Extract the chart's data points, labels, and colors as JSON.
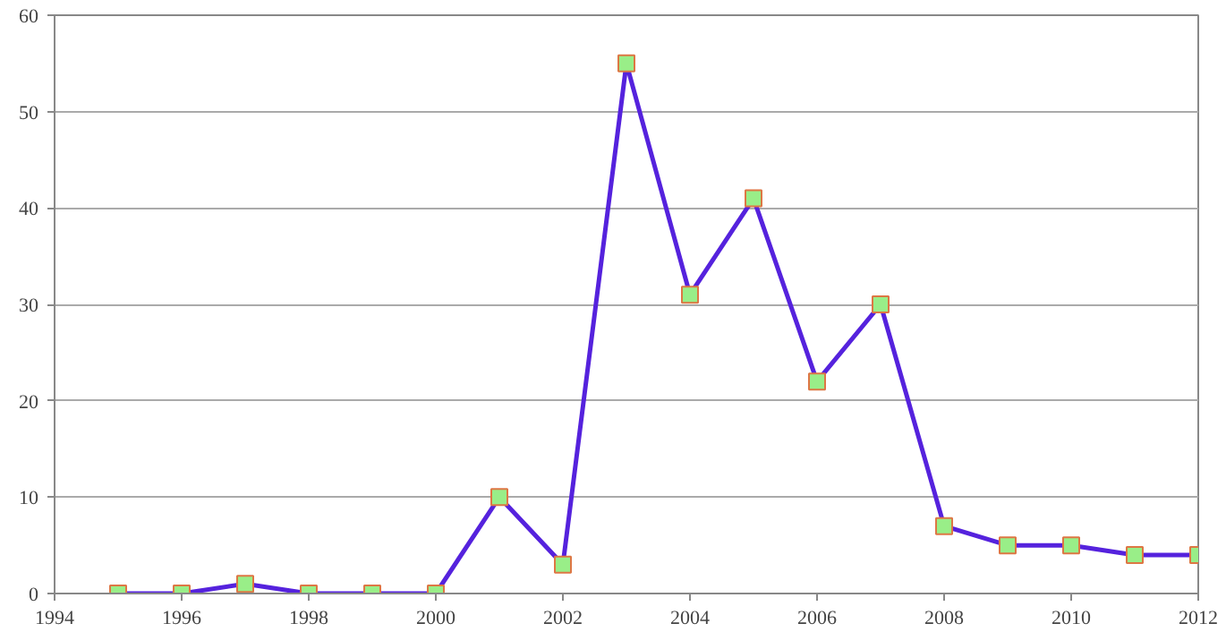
{
  "chart_data": {
    "type": "line",
    "x": [
      1995,
      1996,
      1997,
      1998,
      1999,
      2000,
      2001,
      2002,
      2003,
      2004,
      2005,
      2006,
      2007,
      2008,
      2009,
      2010,
      2011,
      2012
    ],
    "series": [
      {
        "color": "#5522dd",
        "values": [
          0,
          0,
          1,
          0,
          0,
          0,
          10,
          3,
          55,
          31,
          41,
          22,
          30,
          7,
          5,
          5,
          4,
          4
        ]
      }
    ],
    "xlim": [
      1994,
      2012
    ],
    "xticks": [
      1994,
      1996,
      1998,
      2000,
      2002,
      2004,
      2006,
      2008,
      2010,
      2012
    ],
    "ylim": [
      0,
      60
    ],
    "yticks": [
      0,
      10,
      20,
      30,
      40,
      50,
      60
    ],
    "grid": "y",
    "marker": "square",
    "line_style": "solid"
  }
}
